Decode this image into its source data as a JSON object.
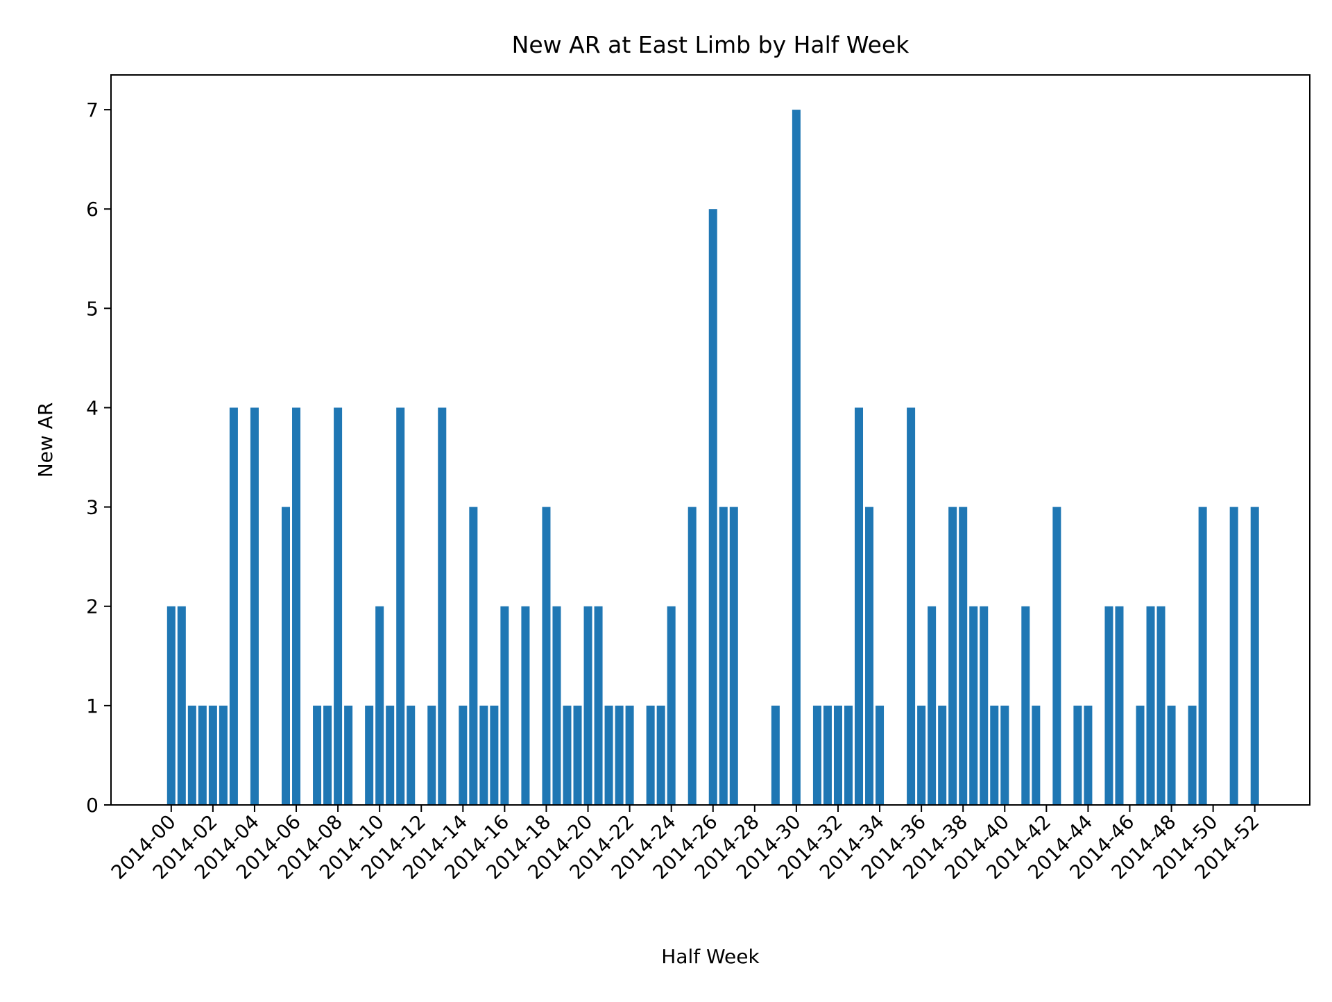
{
  "chart_data": {
    "type": "bar",
    "title": "New AR at East Limb by Half Week",
    "xlabel": "Half Week",
    "ylabel": "New AR",
    "bar_color": "#1f77b4",
    "ylim": [
      0,
      7.35
    ],
    "xlim": [
      -5.78,
      109.28
    ],
    "yticks": [
      0,
      1,
      2,
      3,
      4,
      5,
      6,
      7
    ],
    "xtick_positions": [
      0,
      4,
      8,
      12,
      16,
      20,
      24,
      28,
      32,
      36,
      40,
      44,
      48,
      52,
      56,
      60,
      64,
      68,
      72,
      76,
      80,
      84,
      88,
      92,
      96,
      100,
      104
    ],
    "xtick_labels": [
      "2014-00",
      "2014-02",
      "2014-04",
      "2014-06",
      "2014-08",
      "2014-10",
      "2014-12",
      "2014-14",
      "2014-16",
      "2014-18",
      "2014-20",
      "2014-22",
      "2014-24",
      "2014-26",
      "2014-28",
      "2014-30",
      "2014-32",
      "2014-34",
      "2014-36",
      "2014-38",
      "2014-40",
      "2014-42",
      "2014-44",
      "2014-46",
      "2014-48",
      "2014-50",
      "2014-52"
    ],
    "grid": false,
    "legend": "none",
    "bars": [
      {
        "x": 0,
        "value": 2
      },
      {
        "x": 1,
        "value": 2
      },
      {
        "x": 2,
        "value": 1
      },
      {
        "x": 3,
        "value": 1
      },
      {
        "x": 4,
        "value": 1
      },
      {
        "x": 5,
        "value": 1
      },
      {
        "x": 6,
        "value": 4
      },
      {
        "x": 8,
        "value": 4
      },
      {
        "x": 11,
        "value": 3
      },
      {
        "x": 12,
        "value": 4
      },
      {
        "x": 14,
        "value": 1
      },
      {
        "x": 15,
        "value": 1
      },
      {
        "x": 16,
        "value": 4
      },
      {
        "x": 17,
        "value": 1
      },
      {
        "x": 19,
        "value": 1
      },
      {
        "x": 20,
        "value": 2
      },
      {
        "x": 21,
        "value": 1
      },
      {
        "x": 22,
        "value": 4
      },
      {
        "x": 23,
        "value": 1
      },
      {
        "x": 25,
        "value": 1
      },
      {
        "x": 26,
        "value": 4
      },
      {
        "x": 28,
        "value": 1
      },
      {
        "x": 29,
        "value": 3
      },
      {
        "x": 30,
        "value": 1
      },
      {
        "x": 31,
        "value": 1
      },
      {
        "x": 32,
        "value": 2
      },
      {
        "x": 34,
        "value": 2
      },
      {
        "x": 36,
        "value": 3
      },
      {
        "x": 37,
        "value": 2
      },
      {
        "x": 38,
        "value": 1
      },
      {
        "x": 39,
        "value": 1
      },
      {
        "x": 40,
        "value": 2
      },
      {
        "x": 41,
        "value": 2
      },
      {
        "x": 42,
        "value": 1
      },
      {
        "x": 43,
        "value": 1
      },
      {
        "x": 44,
        "value": 1
      },
      {
        "x": 46,
        "value": 1
      },
      {
        "x": 47,
        "value": 1
      },
      {
        "x": 48,
        "value": 2
      },
      {
        "x": 50,
        "value": 3
      },
      {
        "x": 52,
        "value": 6
      },
      {
        "x": 53,
        "value": 3
      },
      {
        "x": 54,
        "value": 3
      },
      {
        "x": 58,
        "value": 1
      },
      {
        "x": 60,
        "value": 7
      },
      {
        "x": 62,
        "value": 1
      },
      {
        "x": 63,
        "value": 1
      },
      {
        "x": 64,
        "value": 1
      },
      {
        "x": 65,
        "value": 1
      },
      {
        "x": 66,
        "value": 4
      },
      {
        "x": 67,
        "value": 3
      },
      {
        "x": 68,
        "value": 1
      },
      {
        "x": 71,
        "value": 4
      },
      {
        "x": 72,
        "value": 1
      },
      {
        "x": 73,
        "value": 2
      },
      {
        "x": 74,
        "value": 1
      },
      {
        "x": 75,
        "value": 3
      },
      {
        "x": 76,
        "value": 3
      },
      {
        "x": 77,
        "value": 2
      },
      {
        "x": 78,
        "value": 2
      },
      {
        "x": 79,
        "value": 1
      },
      {
        "x": 80,
        "value": 1
      },
      {
        "x": 82,
        "value": 2
      },
      {
        "x": 83,
        "value": 1
      },
      {
        "x": 85,
        "value": 3
      },
      {
        "x": 87,
        "value": 1
      },
      {
        "x": 88,
        "value": 1
      },
      {
        "x": 90,
        "value": 2
      },
      {
        "x": 91,
        "value": 2
      },
      {
        "x": 93,
        "value": 1
      },
      {
        "x": 94,
        "value": 2
      },
      {
        "x": 95,
        "value": 2
      },
      {
        "x": 96,
        "value": 1
      },
      {
        "x": 98,
        "value": 1
      },
      {
        "x": 99,
        "value": 3
      },
      {
        "x": 102,
        "value": 3
      },
      {
        "x": 104,
        "value": 3
      }
    ]
  }
}
